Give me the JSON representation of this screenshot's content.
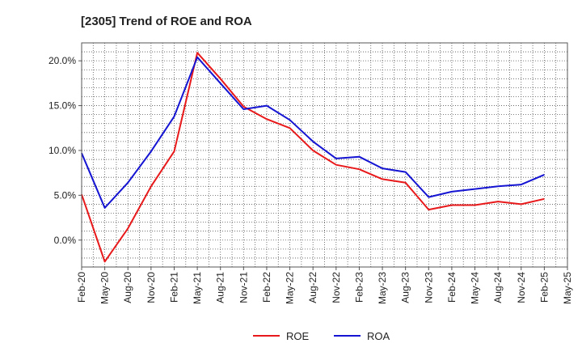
{
  "chart_data": {
    "type": "line",
    "title": "[2305]  Trend of ROE and ROA",
    "xlabel": "",
    "ylabel": "",
    "x": [
      "Feb-20",
      "May-20",
      "Aug-20",
      "Nov-20",
      "Feb-21",
      "May-21",
      "Aug-21",
      "Nov-21",
      "Feb-22",
      "May-22",
      "Aug-22",
      "Nov-22",
      "Feb-23",
      "May-23",
      "Aug-23",
      "Nov-23",
      "Feb-24",
      "May-24",
      "Aug-24",
      "Nov-24",
      "Feb-25",
      "May-25"
    ],
    "ylim": [
      -3.0,
      22.0
    ],
    "y_ticks": [
      0,
      5,
      10,
      15,
      20
    ],
    "y_tick_labels": [
      "0.0%",
      "5.0%",
      "10.0%",
      "15.0%",
      "20.0%"
    ],
    "grid": true,
    "legend": "bottom",
    "series": [
      {
        "name": "ROE",
        "color": "#e8191b",
        "values": [
          5.1,
          -2.4,
          1.3,
          6.0,
          9.9,
          20.9,
          18.0,
          14.9,
          13.5,
          12.5,
          10.0,
          8.4,
          7.9,
          6.8,
          6.4,
          3.4,
          3.9,
          3.9,
          4.3,
          4.0,
          4.6,
          null
        ]
      },
      {
        "name": "ROA",
        "color": "#1414d2",
        "values": [
          9.7,
          3.6,
          6.4,
          9.9,
          13.8,
          20.4,
          17.5,
          14.6,
          15.0,
          13.4,
          11.0,
          9.1,
          9.3,
          8.0,
          7.6,
          4.8,
          5.4,
          5.7,
          6.0,
          6.2,
          7.3,
          null
        ]
      }
    ]
  }
}
